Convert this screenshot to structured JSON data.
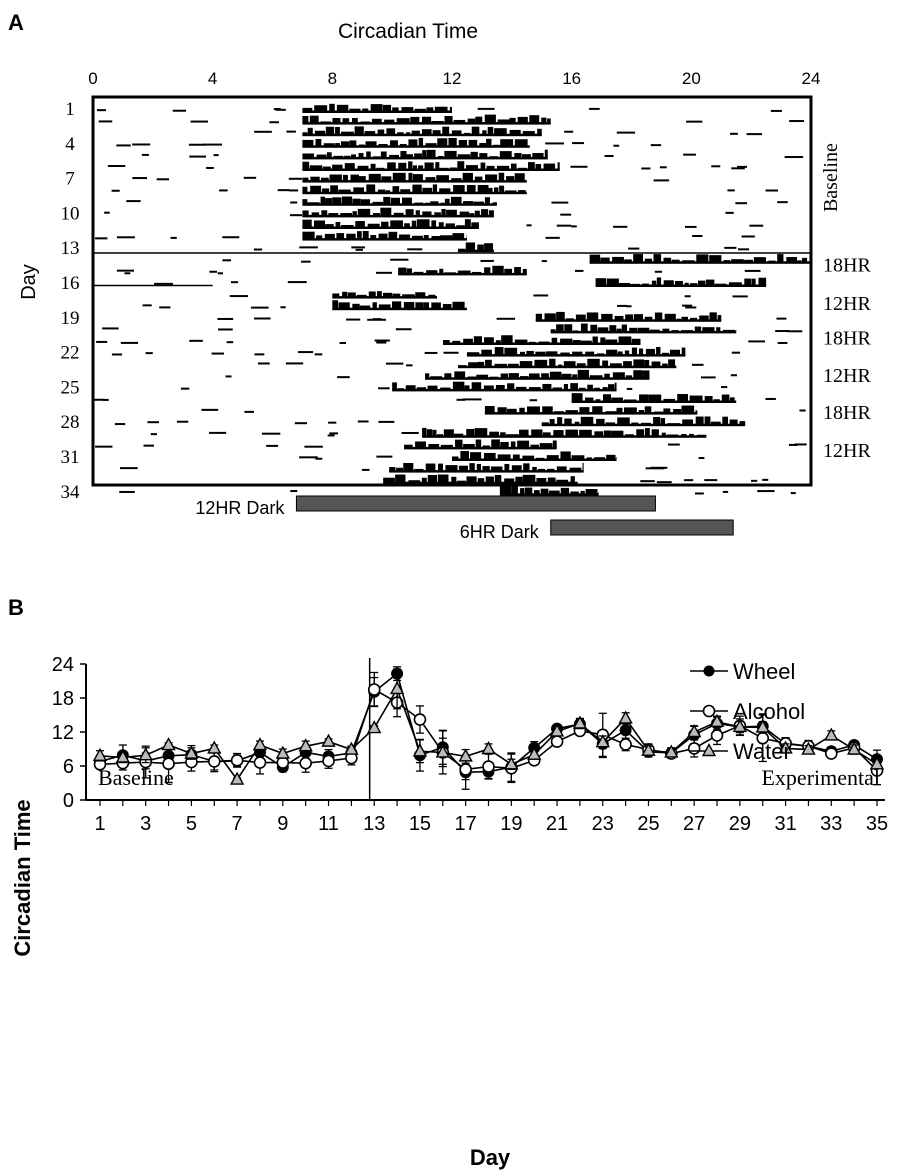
{
  "chart_data": [
    {
      "panel": "A",
      "type": "heatmap",
      "subtype": "double-plotted actogram",
      "title": "Circadian Time",
      "ylabel": "Day",
      "x_ticks": [
        "0",
        "4",
        "8",
        "12",
        "16",
        "20",
        "24"
      ],
      "xlim": [
        0,
        24
      ],
      "y_ticks": [
        "1",
        "4",
        "7",
        "10",
        "13",
        "16",
        "19",
        "22",
        "25",
        "28",
        "31",
        "34"
      ],
      "ylim": [
        1,
        35
      ],
      "right_labels": [
        {
          "text": "Baseline",
          "day": 7
        },
        {
          "text": "18HR",
          "day": 14.5
        },
        {
          "text": "12HR",
          "day": 17.8
        },
        {
          "text": "18HR",
          "day": 20.8
        },
        {
          "text": "12HR",
          "day": 24
        },
        {
          "text": "18HR",
          "day": 27.2
        },
        {
          "text": "12HR",
          "day": 30.5
        }
      ],
      "divider_lines": [
        {
          "day": 13.5,
          "x_from": 0,
          "x_to": 24
        },
        {
          "day": 16.3,
          "x_from": 0,
          "x_to": 4
        }
      ],
      "dark_bars": [
        {
          "label": "12HR Dark",
          "start": 6.8,
          "end": 18.8
        },
        {
          "label": "6HR Dark",
          "start": 15.3,
          "end": 21.4
        }
      ],
      "activity_onset_by_day": [
        7,
        7,
        7,
        7,
        7,
        7,
        7,
        7,
        7,
        7,
        7,
        7,
        12.2,
        16.6,
        10.2,
        16.8,
        8,
        8,
        14.8,
        15.3,
        11.7,
        12.5,
        12.2,
        11.1,
        10,
        16,
        13.1,
        15,
        11,
        10.4,
        12,
        9.9,
        9.7,
        13.6
      ],
      "activity_offset_by_day": [
        12,
        15.3,
        15,
        14.6,
        15.2,
        15.6,
        14.5,
        14.5,
        13.5,
        13.4,
        12.9,
        12.5,
        13.4,
        24,
        14.5,
        22.5,
        11.5,
        12.5,
        21,
        21.5,
        18.3,
        19.8,
        19.5,
        18.6,
        17.5,
        21.5,
        20.2,
        21.8,
        20.5,
        15.5,
        17.5,
        16.4,
        16.2,
        16.9
      ]
    },
    {
      "panel": "B",
      "type": "line",
      "xlabel": "Day",
      "ylabel": "Circadian Time",
      "xlim": [
        0.5,
        35.5
      ],
      "ylim": [
        0,
        24
      ],
      "y_ticks": [
        0,
        6,
        12,
        18,
        24
      ],
      "x_ticks": [
        1,
        3,
        5,
        7,
        9,
        11,
        13,
        15,
        17,
        19,
        21,
        23,
        25,
        27,
        29,
        31,
        33,
        35
      ],
      "divider_day": 12.8,
      "region_labels": [
        "Baseline",
        "Experimental"
      ],
      "legend": "top-right",
      "x": [
        1,
        2,
        3,
        4,
        5,
        6,
        7,
        8,
        9,
        10,
        11,
        12,
        13,
        14,
        15,
        16,
        17,
        18,
        19,
        20,
        21,
        22,
        23,
        24,
        25,
        26,
        27,
        28,
        29,
        30,
        31,
        32,
        33,
        34,
        35
      ],
      "series": [
        {
          "name": "Wheel",
          "marker": "filled-circle",
          "values": [
            6.8,
            7.9,
            6.9,
            7.8,
            8.0,
            6.8,
            6.9,
            8.4,
            5.8,
            8.4,
            7.7,
            8.3,
            19.1,
            22.3,
            7.9,
            9.3,
            4.9,
            5.0,
            5.8,
            9.2,
            12.6,
            13.4,
            9.9,
            12.3,
            8.5,
            8.3,
            11.5,
            13.5,
            12.9,
            13.0,
            9.9,
            9.5,
            8.6,
            9.7,
            7.2
          ],
          "err": [
            0.8,
            1.8,
            1.4,
            1.2,
            1.6,
            1.5,
            1.0,
            1.3,
            0.8,
            1.1,
            1.2,
            1.0,
            2.5,
            1.2,
            2.8,
            3.0,
            3.0,
            1.2,
            2.5,
            1.1,
            0.6,
            0.9,
            2.4,
            1.8,
            0.9,
            0.9,
            1.6,
            1.1,
            1.4,
            2.2,
            1.1,
            1.0,
            0.7,
            0.6,
            1.6
          ]
        },
        {
          "name": "Alcohol",
          "marker": "open-circle",
          "values": [
            6.3,
            6.5,
            6.7,
            6.4,
            6.7,
            6.8,
            7.0,
            6.6,
            6.6,
            6.5,
            6.9,
            7.4,
            19.5,
            17.2,
            14.2,
            8.4,
            5.4,
            5.9,
            5.6,
            7.0,
            10.3,
            12.2,
            11.5,
            9.8,
            8.9,
            8.2,
            9.1,
            11.4,
            13.1,
            10.9,
            10.0,
            9.5,
            8.2,
            9.2,
            5.2
          ],
          "err": [
            0.8,
            1.2,
            2.8,
            3.3,
            1.6,
            1.8,
            1.2,
            2.0,
            1.5,
            1.6,
            1.3,
            1.2,
            3.0,
            2.5,
            2.4,
            3.8,
            1.8,
            2.2,
            2.5,
            0.8,
            0.5,
            0.8,
            3.8,
            1.1,
            1.0,
            0.7,
            1.5,
            1.6,
            1.7,
            4.1,
            1.0,
            0.9,
            0.7,
            0.7,
            2.5
          ]
        },
        {
          "name": "Water",
          "marker": "open-triangle",
          "values": [
            7.8,
            7.5,
            7.9,
            9.7,
            8.2,
            9.1,
            3.6,
            9.7,
            8.2,
            9.5,
            10.3,
            8.9,
            12.7,
            19.6,
            8.6,
            8.4,
            7.7,
            9.0,
            6.3,
            8.0,
            12.1,
            13.5,
            10.2,
            14.4,
            8.7,
            8.4,
            12.0,
            13.8,
            12.9,
            12.8,
            9.1,
            8.9,
            11.4,
            8.9,
            6.3
          ],
          "err": [
            0.9,
            0.9,
            1.3,
            0.4,
            1.0,
            0.6,
            0.3,
            0.7,
            0.8,
            0.9,
            0.5,
            0.6,
            0.4,
            3.5,
            2.0,
            2.5,
            1.2,
            0.9,
            0.9,
            0.8,
            0.7,
            0.9,
            1.1,
            1.0,
            0.8,
            0.8,
            1.0,
            1.0,
            1.0,
            1.0,
            0.8,
            0.7,
            0.8,
            0.8,
            0.8
          ]
        }
      ]
    }
  ],
  "labels": {
    "panel_a": "A",
    "panel_b": "B"
  }
}
